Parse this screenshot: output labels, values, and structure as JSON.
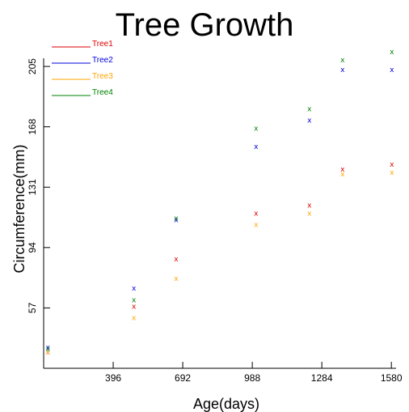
{
  "chart_data": {
    "type": "scatter",
    "title": "Tree Growth",
    "xlabel": "Age(days)",
    "ylabel": "Circumference(mm)",
    "xlim": [
      100,
      1600
    ],
    "ylim": [
      20,
      210
    ],
    "x_ticks": [
      396,
      692,
      988,
      1284,
      1580
    ],
    "y_ticks": [
      57,
      94,
      131,
      168,
      205
    ],
    "legend_position": "top-left",
    "marker": "x",
    "series": [
      {
        "name": "Tree1",
        "color": "#dd0000",
        "x": [
          118,
          484,
          664,
          1004,
          1231,
          1372,
          1582
        ],
        "y": [
          30,
          58,
          87,
          115,
          120,
          142,
          145
        ]
      },
      {
        "name": "Tree2",
        "color": "#0000dd",
        "x": [
          118,
          484,
          664,
          1004,
          1231,
          1372,
          1582
        ],
        "y": [
          33,
          69,
          111,
          156,
          172,
          203,
          203
        ]
      },
      {
        "name": "Tree3",
        "color": "#ffa500",
        "x": [
          118,
          484,
          664,
          1004,
          1231,
          1372,
          1582
        ],
        "y": [
          30,
          51,
          75,
          108,
          115,
          139,
          140
        ]
      },
      {
        "name": "Tree4",
        "color": "#008000",
        "x": [
          118,
          484,
          664,
          1004,
          1231,
          1372,
          1582
        ],
        "y": [
          32,
          62,
          112,
          167,
          179,
          209,
          214
        ]
      }
    ]
  }
}
